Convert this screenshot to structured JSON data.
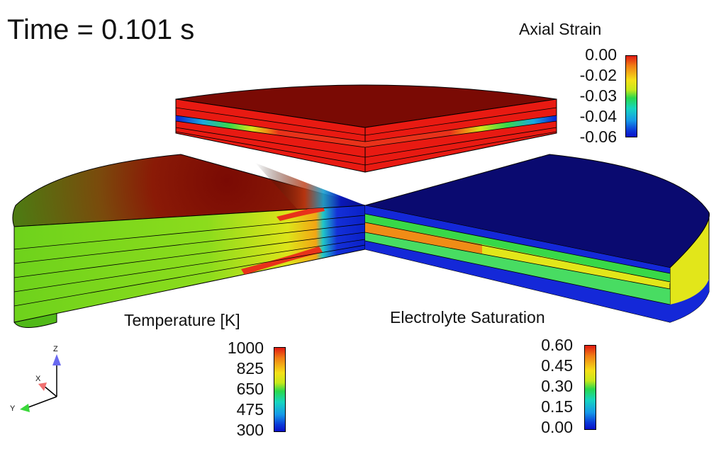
{
  "time_label": "Time = 0.101 s",
  "colorbars": {
    "axial_strain": {
      "title": "Axial Strain",
      "ticks": [
        "0.00",
        "-0.02",
        "-0.03",
        "-0.04",
        "-0.06"
      ]
    },
    "temperature": {
      "title": "Temperature [K]",
      "ticks": [
        "1000",
        "825",
        "650",
        "475",
        "300"
      ]
    },
    "electrolyte_saturation": {
      "title": "Electrolyte Saturation",
      "ticks": [
        "0.60",
        "0.45",
        "0.30",
        "0.15",
        "0.00"
      ]
    }
  },
  "triad": {
    "z": "Z",
    "x": "X",
    "y": "Y"
  },
  "colors": {
    "dark_red": "#7a0a04",
    "red": "#e81a12",
    "navy": "#0a0a70",
    "blue": "#1428d8",
    "green": "#6ec81e",
    "yellow": "#e6ea1a"
  }
}
